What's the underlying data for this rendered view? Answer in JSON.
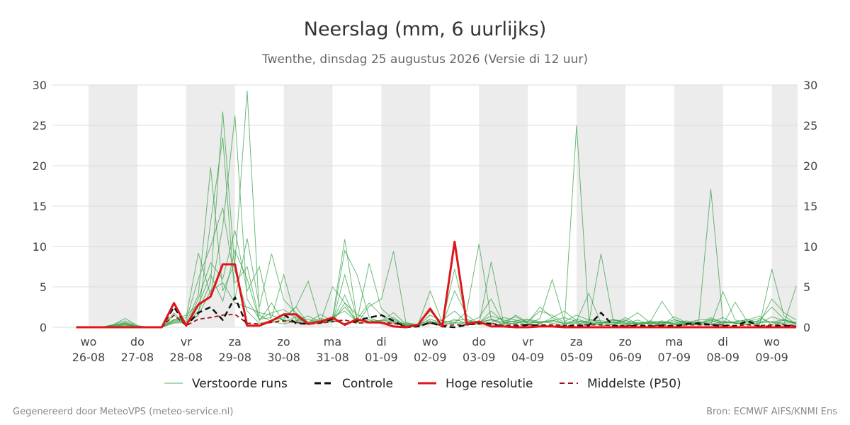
{
  "chart_data": {
    "type": "line",
    "title": "Neerslag (mm, 6 uurlijks)",
    "subtitle": "Twenthe, dinsdag 25 augustus 2026 (Versie di 12 uur)",
    "ylim": [
      0,
      30
    ],
    "y_ticks": [
      0,
      5,
      10,
      15,
      20,
      25,
      30
    ],
    "xlim": [
      -0.6,
      14.3
    ],
    "x_unit": "days from wo 26-08",
    "x_ticks": [
      {
        "day": "wo",
        "date": "26-08"
      },
      {
        "day": "do",
        "date": "27-08"
      },
      {
        "day": "vr",
        "date": "28-08"
      },
      {
        "day": "za",
        "date": "29-08"
      },
      {
        "day": "zo",
        "date": "30-08"
      },
      {
        "day": "ma",
        "date": "31-08"
      },
      {
        "day": "di",
        "date": "01-09"
      },
      {
        "day": "wo",
        "date": "02-09"
      },
      {
        "day": "do",
        "date": "03-09"
      },
      {
        "day": "vr",
        "date": "04-09"
      },
      {
        "day": "za",
        "date": "05-09"
      },
      {
        "day": "zo",
        "date": "06-09"
      },
      {
        "day": "ma",
        "date": "07-09"
      },
      {
        "day": "di",
        "date": "08-09"
      },
      {
        "day": "wo",
        "date": "09-09"
      }
    ],
    "grid": true,
    "legend_position": "bottom",
    "colors": {
      "ensemble": "#2e9e3e",
      "control": "#111111",
      "hires": "#e0151a",
      "median": "#a01010",
      "band": "#ececec",
      "grid": "#dddddd"
    },
    "series": [
      {
        "name": "Verstoorde runs",
        "kind": "ensemble",
        "runs": [
          [
            0,
            0,
            0,
            0.2,
            0.5,
            0.1,
            0,
            0,
            1.5,
            0.3,
            2.0,
            5.5,
            26.7,
            7.0,
            2.0,
            0.5,
            0.8,
            1.2,
            2.5,
            0.5,
            0.7,
            1.2,
            10.9,
            1.0,
            3.0,
            1.5,
            0.6,
            0.2,
            0.4,
            2.0,
            0.3,
            4.5,
            1.5,
            0.4,
            1.0,
            0.3,
            1.5,
            0.6,
            2.5,
            1.2,
            0.4,
            25.0,
            1.0,
            0.6,
            0.3,
            1.2,
            0.4,
            0.5,
            0.8,
            0.4,
            0.3,
            0.6,
            17.1,
            0.8,
            0.5,
            0.3,
            0.9,
            2.5,
            1.0,
            0.3,
            0.4
          ],
          [
            0,
            0,
            0,
            0.3,
            1.1,
            0.2,
            0,
            0.1,
            0.8,
            1.2,
            9.2,
            4.0,
            12.5,
            26.2,
            3.5,
            1.0,
            1.8,
            2.2,
            1.1,
            0.6,
            1.6,
            0.8,
            9.5,
            6.5,
            1.2,
            0.6,
            0.8,
            0.1,
            0.2,
            1.5,
            0.8,
            0.5,
            2.0,
            10.3,
            1.0,
            0.6,
            0.4,
            1.0,
            0.7,
            0.5,
            0.3,
            1.0,
            0.6,
            0.2,
            0.3,
            0.8,
            1.8,
            0.6,
            3.2,
            1.0,
            0.4,
            0.3,
            0.6,
            1.2,
            0.4,
            0.8,
            0.6,
            3.5,
            1.8,
            0.9,
            0.5
          ],
          [
            0,
            0,
            0,
            0.1,
            0.4,
            0.0,
            0,
            0,
            0.5,
            0.6,
            4.0,
            19.8,
            4.5,
            8.0,
            29.3,
            1.5,
            0.7,
            0.4,
            0.8,
            1.4,
            0.6,
            0.9,
            2.5,
            0.8,
            7.9,
            2.3,
            1.0,
            0.3,
            0.1,
            0.7,
            0.4,
            1.0,
            0.5,
            0.3,
            8.1,
            0.6,
            0.7,
            0.3,
            1.1,
            5.9,
            0.7,
            1.5,
            0.9,
            0.8,
            0.6,
            0.4,
            0.9,
            0.3,
            0.7,
            0.5,
            0.8,
            0.4,
            0.3,
            4.4,
            0.9,
            0.6,
            0.3,
            7.2,
            1.4,
            0.4,
            0.6
          ],
          [
            0,
            0,
            0,
            0.2,
            0.6,
            0.1,
            0,
            0,
            1.0,
            0.4,
            1.5,
            13.0,
            23.5,
            3.5,
            11.0,
            2.5,
            9.1,
            3.4,
            1.8,
            0.6,
            1.1,
            0.7,
            3.0,
            0.5,
            2.6,
            3.5,
            9.4,
            0.6,
            0.3,
            0.5,
            0.9,
            2.0,
            0.6,
            1.2,
            3.5,
            0.5,
            0.8,
            1.0,
            0.4,
            1.2,
            2.0,
            0.8,
            0.6,
            0.4,
            0.9,
            0.5,
            0.3,
            0.7,
            0.3,
            1.3,
            0.6,
            0.5,
            0.9,
            0.3,
            3.1,
            0.7,
            1.1,
            0.6,
            0.4,
            5.1,
            1.0
          ],
          [
            0,
            0,
            0,
            0.1,
            0.3,
            0.1,
            0,
            0.1,
            0.7,
            0.9,
            6.0,
            10.0,
            14.8,
            5.5,
            7.5,
            1.0,
            1.2,
            6.5,
            0.9,
            0.4,
            0.6,
            1.3,
            2.0,
            0.7,
            0.9,
            0.8,
            1.8,
            0.4,
            0.2,
            1.0,
            0.5,
            7.2,
            0.8,
            0.6,
            1.4,
            0.9,
            0.6,
            0.7,
            2.0,
            1.5,
            0.6,
            0.8,
            4.2,
            0.5,
            1.0,
            0.6,
            0.4,
            0.8,
            0.6,
            0.4,
            0.6,
            0.9,
            1.0,
            0.7,
            0.6,
            1.0,
            0.5,
            1.3,
            0.8,
            0.5,
            0.3
          ],
          [
            0,
            0,
            0,
            0.3,
            0.8,
            0.2,
            0,
            0,
            1.8,
            0.2,
            3.5,
            8.0,
            6.0,
            12.0,
            4.5,
            7.5,
            0.6,
            1.0,
            2.5,
            5.7,
            0.6,
            5.0,
            3.0,
            1.6,
            0.9,
            0.4,
            0.5,
            0.5,
            0.3,
            4.5,
            0.6,
            0.8,
            1.0,
            0.4,
            0.6,
            1.2,
            0.9,
            0.5,
            0.7,
            0.8,
            1.2,
            0.7,
            0.5,
            9.1,
            0.8,
            0.9,
            0.4,
            0.6,
            0.5,
            0.9,
            0.6,
            0.3,
            1.2,
            0.5,
            0.7,
            0.9,
            1.4,
            0.3,
            0.9,
            0.6,
            2.0
          ],
          [
            0,
            0,
            0,
            0.2,
            0.5,
            0.0,
            0,
            0.1,
            0.9,
            1.5,
            2.8,
            6.5,
            3.2,
            9.5,
            6.0,
            0.8,
            3.0,
            0.6,
            1.3,
            0.5,
            0.9,
            0.6,
            6.5,
            1.0,
            0.7,
            0.8,
            1.2,
            0.2,
            0.4,
            0.8,
            0.2,
            0.6,
            0.4,
            0.5,
            2.0,
            0.7,
            1.3,
            0.5,
            0.6,
            0.7,
            0.5,
            0.6,
            0.8,
            0.5,
            0.7,
            0.3,
            0.6,
            0.5,
            0.4,
            0.7,
            0.5,
            0.7,
            0.4,
            0.6,
            0.5,
            0.4,
            0.8,
            0.6,
            1.0,
            0.4,
            0.5
          ],
          [
            0,
            0,
            0,
            0.1,
            0.2,
            0.1,
            0,
            0,
            0.6,
            0.7,
            1.5,
            4.5,
            5.5,
            3.0,
            2.5,
            1.8,
            1.5,
            0.9,
            0.7,
            1.0,
            0.5,
            0.8,
            4.0,
            0.6,
            0.5,
            0.9,
            0.7,
            0.3,
            0.2,
            0.6,
            0.5,
            0.5,
            0.6,
            0.7,
            0.9,
            0.4,
            0.5,
            0.8,
            0.5,
            0.9,
            0.4,
            0.5,
            0.4,
            0.6,
            0.5,
            0.8,
            0.5,
            0.4,
            0.6,
            0.3,
            0.5,
            0.4,
            0.8,
            0.5,
            0.6,
            0.4,
            0.5,
            0.7,
            0.5,
            0.6,
            0.4
          ]
        ]
      },
      {
        "name": "Controle",
        "kind": "control",
        "values": [
          0,
          0,
          0,
          0,
          0,
          0,
          0,
          0,
          2.5,
          0.2,
          1.8,
          2.5,
          0.9,
          3.7,
          0.2,
          0.2,
          0.8,
          1.6,
          0.5,
          0.4,
          0.6,
          1.0,
          0.4,
          0.8,
          1.2,
          1.5,
          0.8,
          0.0,
          0.1,
          0.6,
          0.1,
          0.0,
          0.3,
          0.6,
          0.4,
          0.1,
          0.1,
          0.3,
          0.2,
          0.1,
          0.1,
          0.2,
          0.2,
          1.8,
          0.2,
          0.1,
          0.2,
          0.1,
          0.2,
          0.1,
          0.4,
          0.5,
          0.3,
          0.2,
          0.1,
          0.8,
          0.1,
          0.1,
          0.2,
          0.1,
          0.1
        ]
      },
      {
        "name": "Hoge resolutie",
        "kind": "hires",
        "values": [
          0,
          0,
          0,
          0,
          0,
          0,
          0,
          0,
          3.0,
          0.2,
          2.8,
          3.8,
          7.8,
          7.8,
          0.2,
          0.2,
          0.8,
          1.6,
          1.6,
          0.4,
          0.7,
          1.2,
          0.3,
          1.0,
          0.6,
          0.6,
          0.1,
          0.0,
          0.3,
          2.3,
          0.1,
          10.6,
          0.4,
          0.7,
          0.1,
          0.1,
          0.0,
          0.0,
          0.1,
          0.1,
          0.0,
          0.0,
          0.0,
          0.0,
          0.0,
          0.0,
          0.0,
          0.0,
          0.0,
          0.0,
          0.0,
          0.0,
          0.0,
          0.0,
          0.0,
          0.0,
          0.0,
          0.0,
          0.0,
          0.0,
          0.0
        ]
      },
      {
        "name": "Middelste (P50)",
        "kind": "median",
        "values": [
          0,
          0,
          0,
          0,
          0,
          0,
          0,
          0,
          1.5,
          0.2,
          1.0,
          1.2,
          1.5,
          1.6,
          0.5,
          0.4,
          0.6,
          0.8,
          0.6,
          0.4,
          0.5,
          0.7,
          0.9,
          0.5,
          0.6,
          0.6,
          0.5,
          0.1,
          0.1,
          0.5,
          0.2,
          0.3,
          0.3,
          0.4,
          0.5,
          0.2,
          0.3,
          0.3,
          0.3,
          0.3,
          0.2,
          0.3,
          0.3,
          0.3,
          0.2,
          0.2,
          0.3,
          0.2,
          0.3,
          0.2,
          0.3,
          0.3,
          0.3,
          0.3,
          0.2,
          0.3,
          0.2,
          0.3,
          0.3,
          0.2,
          0.2
        ]
      }
    ]
  },
  "legend": {
    "ensemble": "Verstoorde runs",
    "control": "Controle",
    "hires": "Hoge resolutie",
    "median": "Middelste (P50)"
  },
  "footer": {
    "left": "Gegenereerd door MeteoVPS (meteo-service.nl)",
    "right": "Bron: ECMWF AIFS/KNMI Ens"
  }
}
